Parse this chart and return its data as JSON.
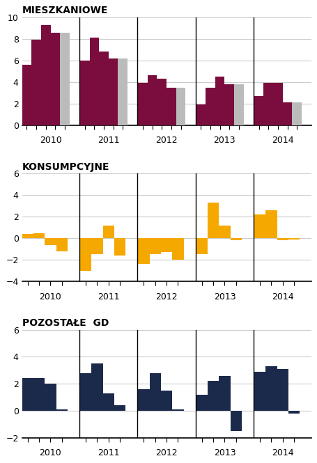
{
  "mieszkaniowe": {
    "title": "MIESZKANIOWE",
    "values": [
      5.6,
      7.9,
      9.3,
      8.6,
      6.0,
      8.1,
      6.8,
      6.2,
      3.9,
      4.6,
      4.3,
      3.5,
      1.9,
      3.5,
      4.5,
      3.8,
      2.7,
      3.9,
      3.9,
      2.1
    ],
    "colors": [
      "#7B0D3E",
      "#7B0D3E",
      "#7B0D3E",
      "#7B0D3E",
      "#7B0D3E",
      "#7B0D3E",
      "#7B0D3E",
      "#7B0D3E",
      "#7B0D3E",
      "#7B0D3E",
      "#7B0D3E",
      "#7B0D3E",
      "#7B0D3E",
      "#7B0D3E",
      "#7B0D3E",
      "#7B0D3E",
      "#7B0D3E",
      "#7B0D3E",
      "#7B0D3E",
      "#7B0D3E"
    ],
    "ylim": [
      0,
      10
    ],
    "yticks": [
      0,
      2,
      4,
      6,
      8,
      10
    ],
    "n_per_group": [
      4,
      4,
      4,
      4,
      4
    ],
    "gray_last": true
  },
  "konsumpcyjne": {
    "title": "KONSUMPCYJNE",
    "values": [
      0.4,
      0.45,
      -0.6,
      -1.2,
      -3.0,
      -1.5,
      1.2,
      -1.6,
      -2.4,
      -1.5,
      -1.3,
      -2.0,
      -1.5,
      3.3,
      1.2,
      -0.2,
      2.2,
      2.6,
      -0.15,
      -0.1
    ],
    "colors": [
      "#F5A800",
      "#F5A800",
      "#F5A800",
      "#F5A800",
      "#F5A800",
      "#F5A800",
      "#F5A800",
      "#F5A800",
      "#F5A800",
      "#F5A800",
      "#F5A800",
      "#F5A800",
      "#F5A800",
      "#F5A800",
      "#F5A800",
      "#F5A800",
      "#F5A800",
      "#F5A800",
      "#F5A800",
      "#F5A800"
    ],
    "ylim": [
      -4,
      6
    ],
    "yticks": [
      -4,
      -2,
      0,
      2,
      4,
      6
    ],
    "n_per_group": [
      4,
      4,
      4,
      4,
      4
    ],
    "gray_last": false
  },
  "pozostale": {
    "title": "POZOSTAŁE  GD",
    "values": [
      2.4,
      2.4,
      2.0,
      0.1,
      2.8,
      3.5,
      1.3,
      0.4,
      1.6,
      2.8,
      1.5,
      0.1,
      1.2,
      2.2,
      2.6,
      -1.5,
      2.9,
      3.3,
      3.1,
      -0.2
    ],
    "colors": [
      "#1B2A4A",
      "#1B2A4A",
      "#1B2A4A",
      "#1B2A4A",
      "#1B2A4A",
      "#1B2A4A",
      "#1B2A4A",
      "#1B2A4A",
      "#1B2A4A",
      "#1B2A4A",
      "#1B2A4A",
      "#1B2A4A",
      "#1B2A4A",
      "#1B2A4A",
      "#1B2A4A",
      "#1B2A4A",
      "#1B2A4A",
      "#1B2A4A",
      "#1B2A4A",
      "#1B2A4A"
    ],
    "ylim": [
      -2,
      6
    ],
    "yticks": [
      -2,
      0,
      2,
      4,
      6
    ],
    "n_per_group": [
      4,
      4,
      4,
      4,
      4
    ],
    "gray_last": false
  },
  "year_labels": [
    "2010",
    "2011",
    "2012",
    "2013",
    "2014"
  ],
  "gray_color": "#BBBBBB",
  "sep_color": "#000000",
  "background_color": "#FFFFFF",
  "grid_color": "#CCCCCC",
  "title_fontsize": 10,
  "tick_fontsize": 9,
  "label_fontsize": 9
}
